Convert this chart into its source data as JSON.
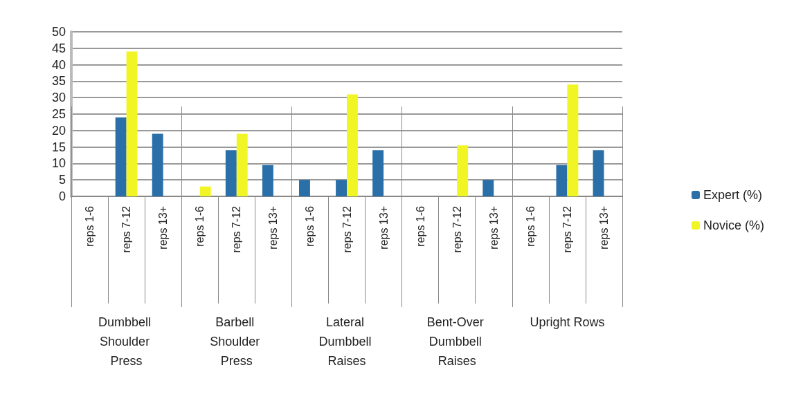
{
  "chart_data": {
    "type": "bar",
    "categories": [
      "reps 1-6",
      "reps 7-12",
      "reps 13+",
      "reps 1-6",
      "reps 7-12",
      "reps 13+",
      "reps 1-6",
      "reps 7-12",
      "reps 13+",
      "reps 1-6",
      "reps 7-12",
      "reps 13+",
      "reps 1-6",
      "reps 7-12",
      "reps 13+"
    ],
    "series": [
      {
        "name": "Expert (%)",
        "color": "#2a6fa8",
        "values": [
          0,
          24,
          19,
          0,
          14,
          9.5,
          5,
          5,
          14,
          0,
          0,
          5,
          0,
          9.5,
          14
        ]
      },
      {
        "name": "Novice (%)",
        "color": "#f2f525",
        "values": [
          0,
          44,
          0,
          3,
          19,
          0,
          0,
          31,
          0,
          0,
          15.5,
          0,
          0,
          34,
          0
        ]
      }
    ],
    "annotations": [
      "Dumbbell Shoulder Press",
      "Barbell Shoulder Press",
      "Lateral Dumbbell Raises",
      "Bent-Over Dumbbell Raises",
      "Upright Rows"
    ],
    "ylim": [
      0,
      50
    ],
    "yticks": [
      0,
      5,
      10,
      15,
      20,
      25,
      30,
      35,
      40,
      45,
      50
    ],
    "grid": "y",
    "legend": "right"
  }
}
